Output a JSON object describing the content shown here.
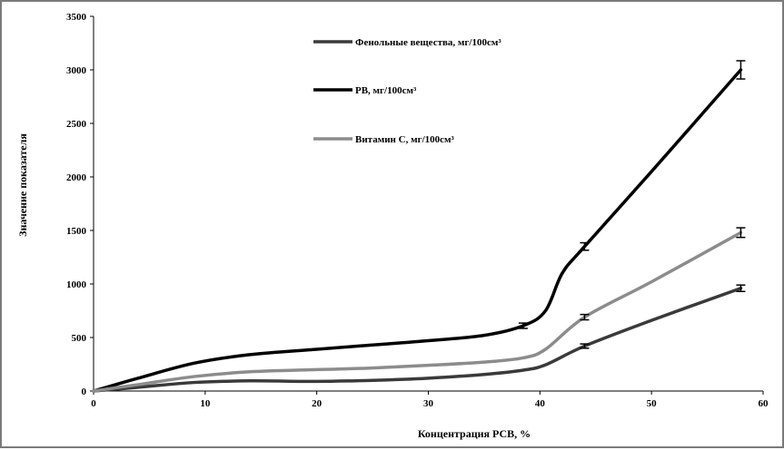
{
  "chart_data": {
    "type": "line",
    "title": "",
    "xlabel": "Концентрация РСВ, %",
    "ylabel": "Значение показателя",
    "xlim": [
      0,
      60
    ],
    "ylim": [
      0,
      3500
    ],
    "xticks": [
      0,
      10,
      20,
      30,
      40,
      50,
      60
    ],
    "yticks": [
      0,
      500,
      1000,
      1500,
      2000,
      2500,
      3000,
      3500
    ],
    "grid": false,
    "legend": "top-center",
    "series": [
      {
        "name": "Фенольные вещества, мг/100см³",
        "color": "#3a3a3a",
        "x": [
          0,
          4,
          9,
          14,
          20,
          25,
          30,
          35,
          38.5,
          40.5,
          44,
          50,
          58
        ],
        "y": [
          0,
          35,
          80,
          95,
          90,
          100,
          120,
          155,
          195,
          245,
          420,
          660,
          960
        ],
        "error_points": [
          {
            "x": 44,
            "y": 420,
            "err": 20
          },
          {
            "x": 58,
            "y": 960,
            "err": 30
          }
        ]
      },
      {
        "name": "РВ, мг/100см³",
        "color": "#000000",
        "x": [
          0,
          4,
          9,
          14,
          20,
          25,
          30,
          35,
          38.5,
          40.5,
          42,
          44,
          50,
          58
        ],
        "y": [
          0,
          120,
          260,
          340,
          390,
          430,
          470,
          520,
          610,
          750,
          1100,
          1350,
          2050,
          3000
        ],
        "error_points": [
          {
            "x": 38.5,
            "y": 610,
            "err": 25
          },
          {
            "x": 44,
            "y": 1350,
            "err": 35
          },
          {
            "x": 58,
            "y": 3000,
            "err": 85
          }
        ]
      },
      {
        "name": "Витамин С, мг/100см³",
        "color": "#8c8c8c",
        "x": [
          0,
          4,
          9,
          14,
          20,
          25,
          30,
          35,
          38.5,
          40.5,
          44,
          50,
          58
        ],
        "y": [
          0,
          60,
          135,
          180,
          200,
          215,
          240,
          270,
          310,
          390,
          690,
          1020,
          1480
        ],
        "error_points": [
          {
            "x": 44,
            "y": 690,
            "err": 25
          },
          {
            "x": 58,
            "y": 1480,
            "err": 45
          }
        ]
      }
    ]
  }
}
